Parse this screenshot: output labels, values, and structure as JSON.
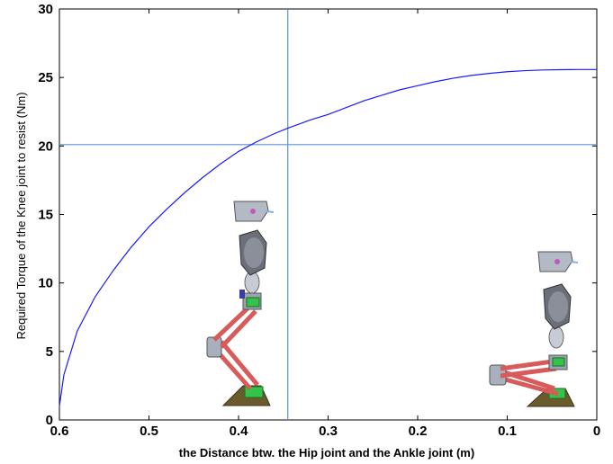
{
  "chart_data": {
    "type": "line",
    "xlabel": "the Distance btw. the Hip joint and the Ankle joint (m)",
    "ylabel": "Required Torque of the Knee joint to resist (Nm)",
    "xlim": [
      0.6,
      0
    ],
    "ylim": [
      0,
      30
    ],
    "x_reversed": true,
    "x_ticks": [
      0.6,
      0.5,
      0.4,
      0.3,
      0.2,
      0.1,
      0
    ],
    "x_tick_labels": [
      "0.6",
      "0.5",
      "0.4",
      "0.3",
      "0.2",
      "0.1",
      "0"
    ],
    "y_ticks": [
      0,
      5,
      10,
      15,
      20,
      25,
      30
    ],
    "y_tick_labels": [
      "0",
      "5",
      "10",
      "15",
      "20",
      "25",
      "30"
    ],
    "grid": false,
    "series": [
      {
        "color": "#1a1aff",
        "x": [
          0.6,
          0.595,
          0.58,
          0.56,
          0.54,
          0.52,
          0.5,
          0.48,
          0.46,
          0.44,
          0.42,
          0.4,
          0.38,
          0.36,
          0.345,
          0.32,
          0.3,
          0.28,
          0.26,
          0.24,
          0.22,
          0.2,
          0.18,
          0.16,
          0.14,
          0.12,
          0.1,
          0.08,
          0.06,
          0.04,
          0.02,
          0.0
        ],
        "y": [
          1.0,
          3.3,
          6.5,
          9.0,
          10.9,
          12.6,
          14.1,
          15.4,
          16.6,
          17.7,
          18.7,
          19.6,
          20.3,
          20.9,
          21.3,
          21.9,
          22.3,
          22.8,
          23.3,
          23.7,
          24.1,
          24.4,
          24.7,
          24.95,
          25.15,
          25.3,
          25.42,
          25.5,
          25.55,
          25.57,
          25.58,
          25.58
        ]
      }
    ],
    "reference_lines": {
      "color": "#5b8fd6",
      "vertical_x": 0.345,
      "horizontal_y": 20.1
    },
    "illustrations": [
      {
        "name": "robot-leg-standing",
        "x_center": 0.4
      },
      {
        "name": "robot-leg-crouched",
        "x_center": 0.08
      }
    ]
  }
}
